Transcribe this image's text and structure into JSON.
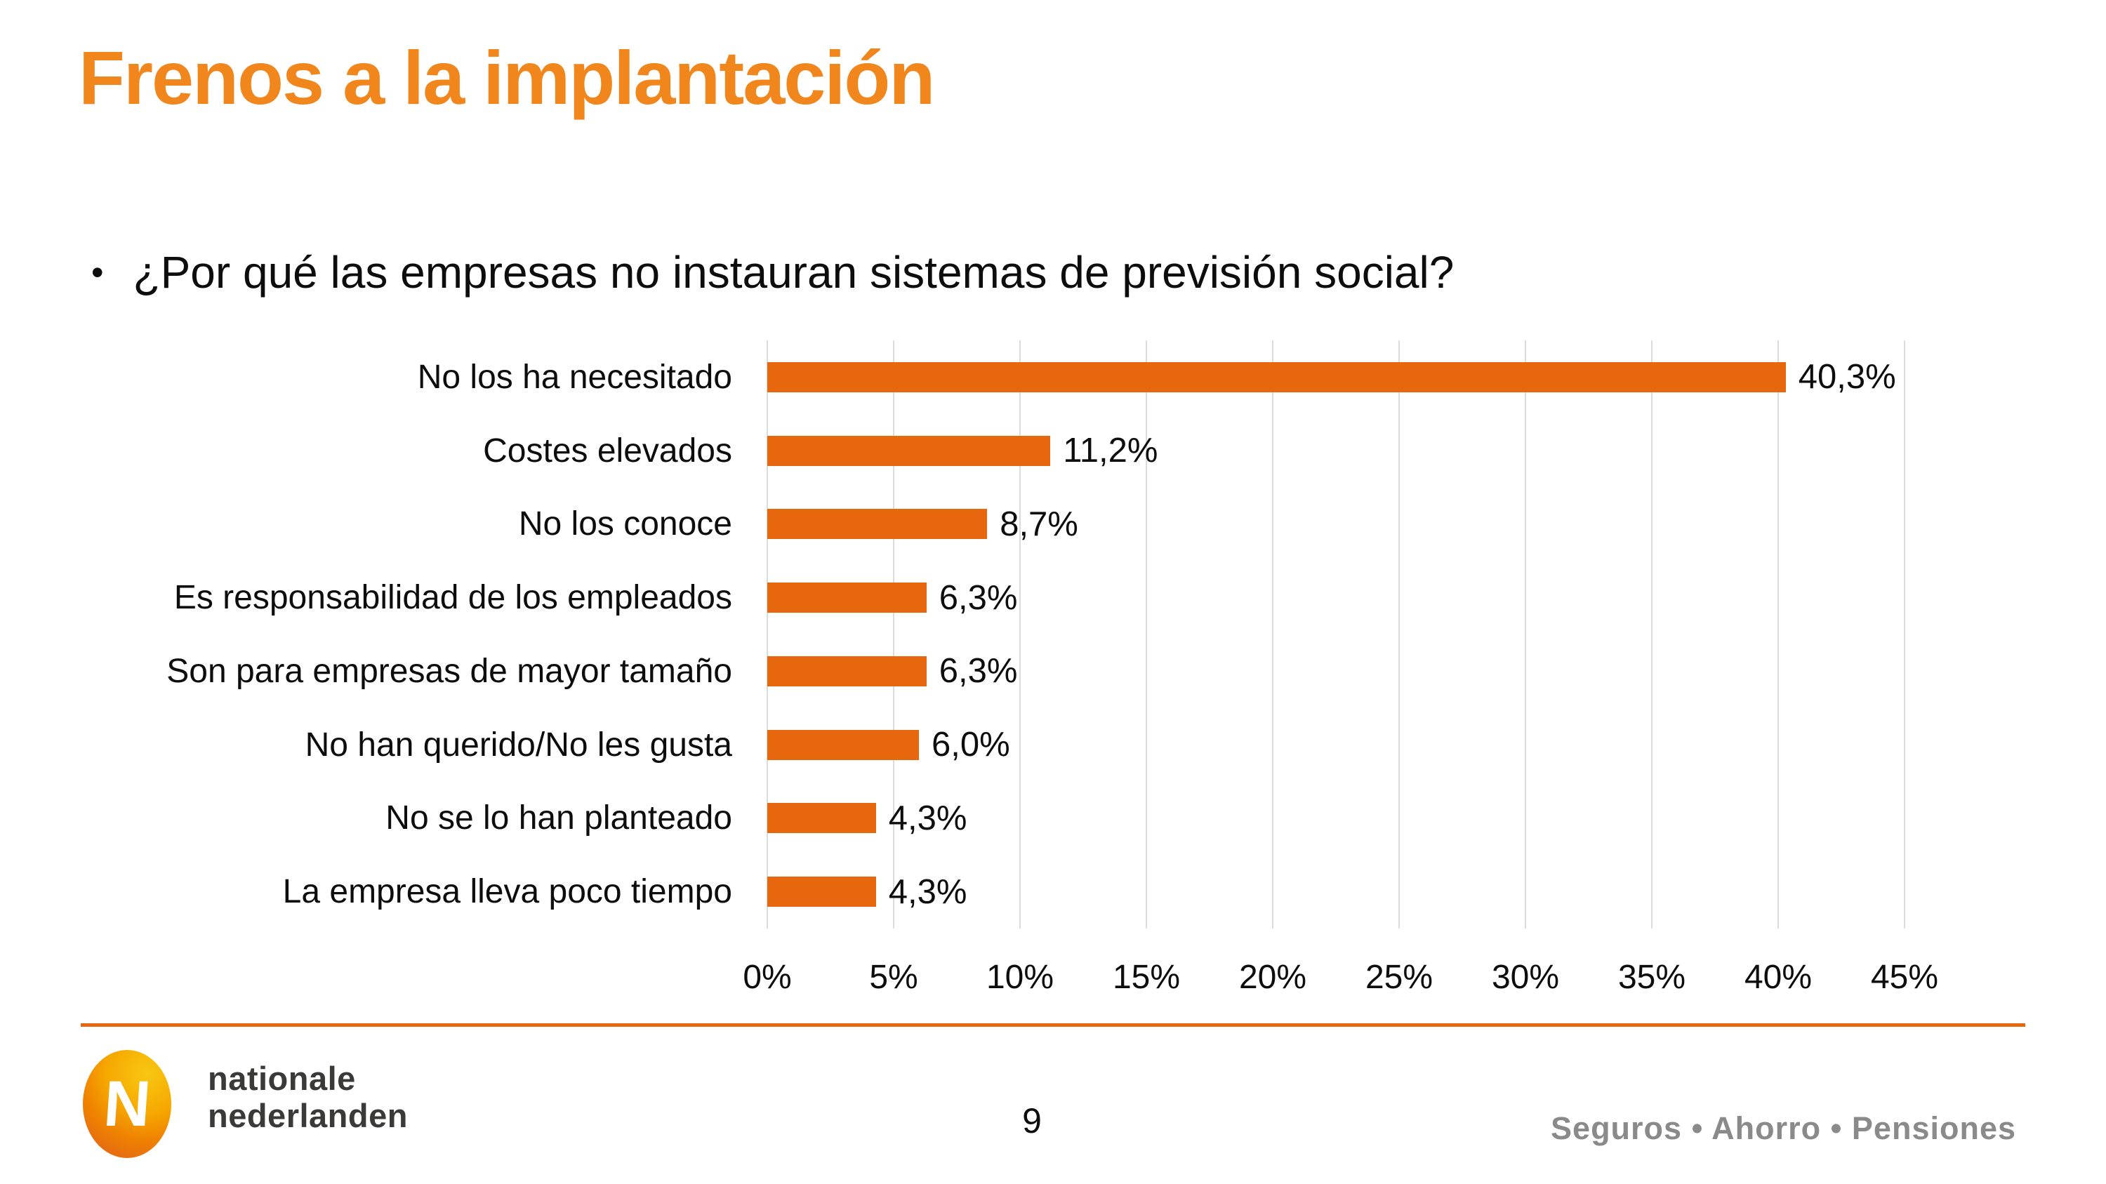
{
  "slide": {
    "title": "Frenos a la implantación",
    "bullet_marker": "•",
    "bullet_text": "¿Por qué las empresas no instauran sistemas de previsión social?",
    "page_number": "9",
    "footer_tagline": "Seguros • Ahorro • Pensiones",
    "logo": {
      "monogram": "N",
      "line1": "nationale",
      "line2": "nederlanden"
    }
  },
  "colors": {
    "accent_orange": "#E6670E",
    "title_orange": "#F0861C",
    "gridline_gray": "#DCDCDC",
    "footer_text_gray": "#8A8A8A",
    "logo_text_gray": "#3A3A39"
  },
  "chart_data": {
    "type": "bar",
    "orientation": "horizontal",
    "title": "",
    "xlabel": "",
    "ylabel": "",
    "categories": [
      "No los ha necesitado",
      "Costes elevados",
      "No los conoce",
      "Es responsabilidad de los empleados",
      "Son para empresas de mayor tamaño",
      "No han querido/No les gusta",
      "No se lo han planteado",
      "La empresa lleva poco tiempo"
    ],
    "values": [
      40.3,
      11.2,
      8.7,
      6.3,
      6.3,
      6.0,
      4.3,
      4.3
    ],
    "value_labels": [
      "40,3%",
      "11,2%",
      "8,7%",
      "6,3%",
      "6,3%",
      "6,0%",
      "4,3%",
      "4,3%"
    ],
    "x_ticks": [
      "0%",
      "5%",
      "10%",
      "15%",
      "20%",
      "25%",
      "30%",
      "35%",
      "40%",
      "45%"
    ],
    "x_tick_values": [
      0,
      5,
      10,
      15,
      20,
      25,
      30,
      35,
      40,
      45
    ],
    "xlim": [
      0,
      45
    ],
    "bar_color": "#E6670E",
    "grid": true,
    "legend": false
  }
}
